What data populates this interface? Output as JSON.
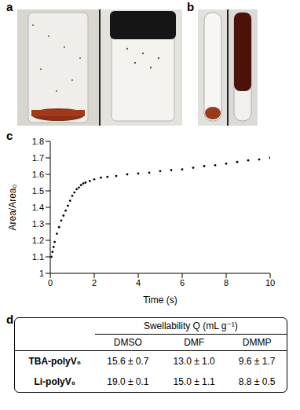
{
  "panel_labels": [
    "a",
    "b",
    "c",
    "d"
  ],
  "chart_data": {
    "type": "scatter",
    "x_label": "Time (s)",
    "y_label": "Area/Area₀",
    "x": [
      0.05,
      0.1,
      0.15,
      0.2,
      0.3,
      0.4,
      0.5,
      0.6,
      0.7,
      0.8,
      0.9,
      1.0,
      1.1,
      1.2,
      1.3,
      1.4,
      1.5,
      1.6,
      1.8,
      2.0,
      2.3,
      2.6,
      3.0,
      3.5,
      4.0,
      4.5,
      5.0,
      5.5,
      6.0,
      6.5,
      7.0,
      7.5,
      8.0,
      8.5,
      9.0,
      9.5,
      10.0
    ],
    "values": [
      1.1,
      1.13,
      1.16,
      1.19,
      1.24,
      1.28,
      1.32,
      1.35,
      1.38,
      1.41,
      1.44,
      1.47,
      1.49,
      1.51,
      1.52,
      1.535,
      1.545,
      1.55,
      1.56,
      1.57,
      1.58,
      1.585,
      1.59,
      1.6,
      1.605,
      1.61,
      1.62,
      1.625,
      1.63,
      1.64,
      1.65,
      1.655,
      1.665,
      1.675,
      1.685,
      1.69,
      1.7
    ],
    "color": "#000000",
    "marker": "circle",
    "xlim": [
      0,
      10
    ],
    "xticks": [
      0,
      2,
      4,
      6,
      8,
      10
    ],
    "ylim": [
      1,
      1.8
    ],
    "yticks": [
      1,
      1.1,
      1.2,
      1.3,
      1.4,
      1.5,
      1.6,
      1.7,
      1.8
    ],
    "grid": false
  },
  "table": {
    "header": "Swellability Q (mL g⁻¹)",
    "columns": [
      "DMSO",
      "DMF",
      "DMMP"
    ],
    "rows": [
      [
        "TBA-polyV₆",
        "15.6 ± 0.7",
        "13.0 ± 1.0",
        "9.6 ± 1.7"
      ],
      [
        "Li-polyV₆",
        "19.0 ± 0.1",
        "15.0 ± 1.1",
        "8.8 ± 0.5"
      ]
    ]
  }
}
